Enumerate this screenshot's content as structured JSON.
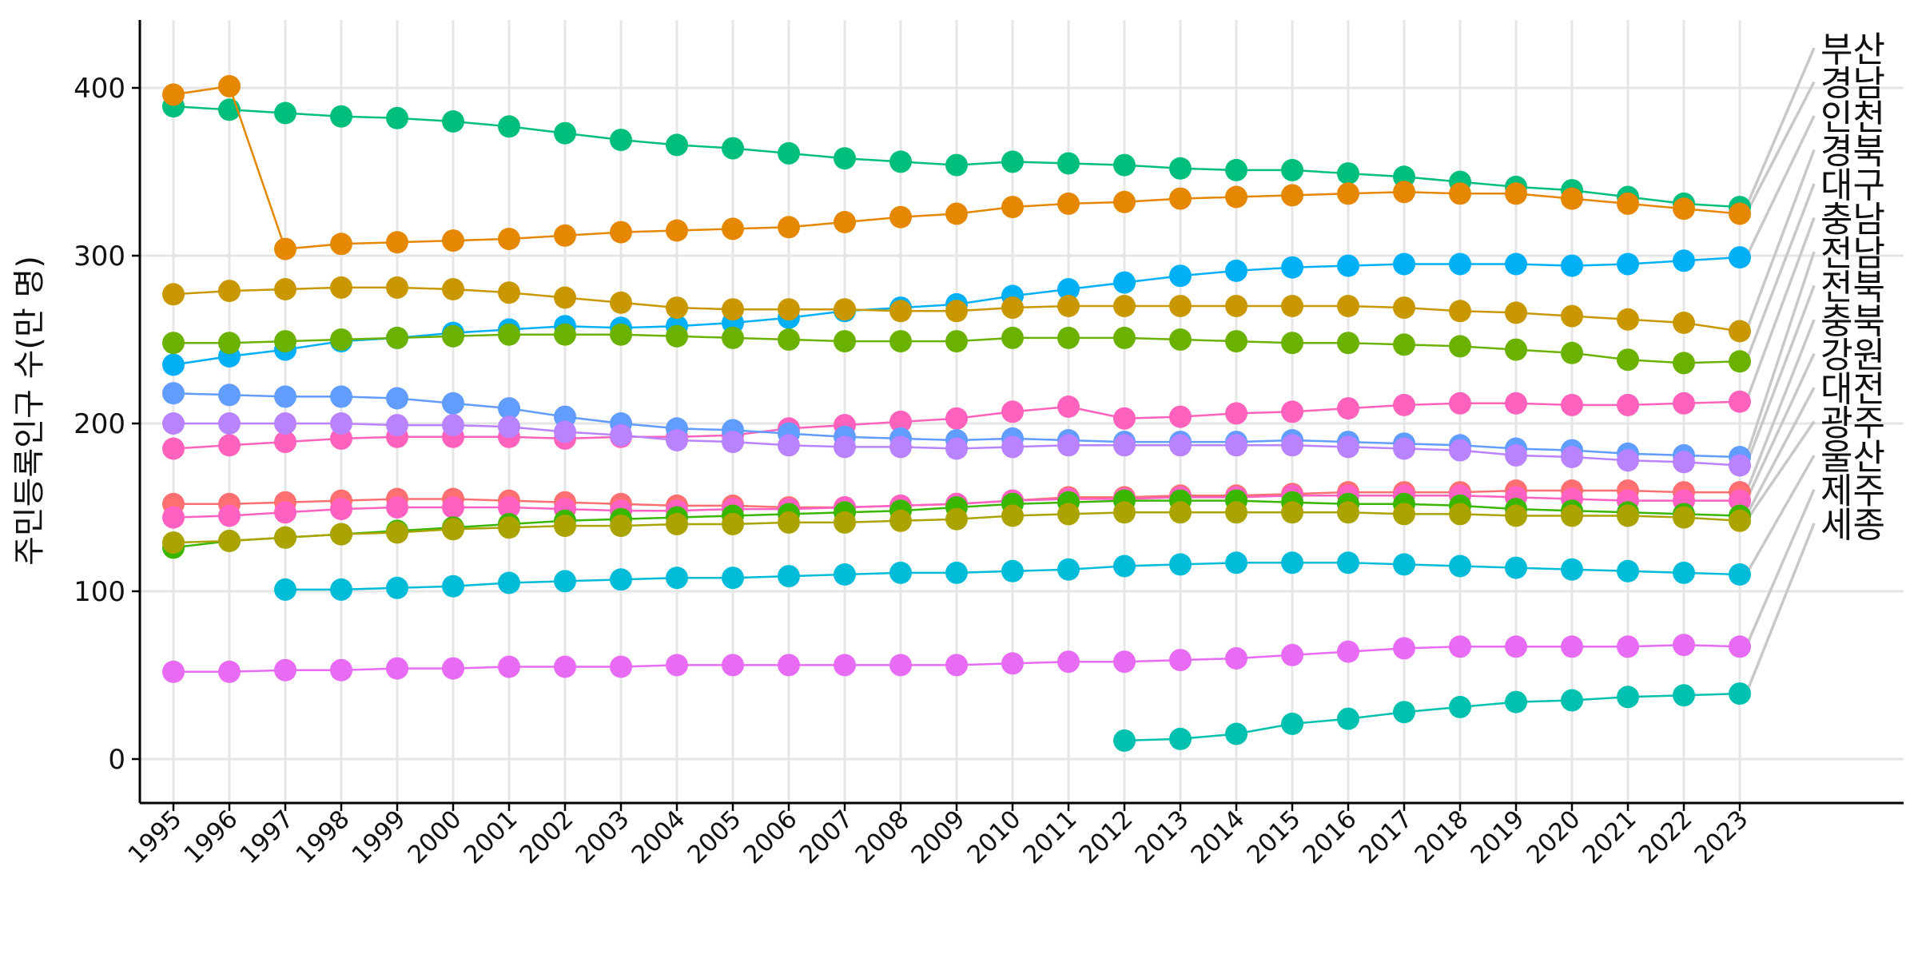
{
  "chart_data": {
    "type": "line",
    "title": "",
    "xlabel": "",
    "ylabel": "주민등록인구 수(만 명)",
    "x": [
      1995,
      1996,
      1997,
      1998,
      1999,
      2000,
      2001,
      2002,
      2003,
      2004,
      2005,
      2006,
      2007,
      2008,
      2009,
      2010,
      2011,
      2012,
      2013,
      2014,
      2015,
      2016,
      2017,
      2018,
      2019,
      2020,
      2021,
      2022,
      2023
    ],
    "ylim": [
      -27,
      440
    ],
    "y_ticks": [
      0,
      100,
      200,
      300,
      400
    ],
    "x_ticks": [
      "1995",
      "1996",
      "1997",
      "1998",
      "1999",
      "2000",
      "2001",
      "2002",
      "2003",
      "2004",
      "2005",
      "2006",
      "2007",
      "2008",
      "2009",
      "2010",
      "2011",
      "2012",
      "2013",
      "2014",
      "2015",
      "2016",
      "2017",
      "2018",
      "2019",
      "2020",
      "2021",
      "2022",
      "2023"
    ],
    "grid": true,
    "legend": "direct labels at right end of lines",
    "series": [
      {
        "name": "부산",
        "color": "#00BF7D",
        "values": [
          389,
          387,
          385,
          383,
          382,
          380,
          377,
          373,
          369,
          366,
          364,
          361,
          358,
          356,
          354,
          356,
          355,
          354,
          352,
          351,
          351,
          349,
          347,
          344,
          341,
          339,
          335,
          331,
          329
        ]
      },
      {
        "name": "경남",
        "color": "#E58700",
        "values": [
          396,
          401,
          304,
          307,
          308,
          309,
          310,
          312,
          314,
          315,
          316,
          317,
          320,
          323,
          325,
          329,
          331,
          332,
          334,
          335,
          336,
          337,
          338,
          337,
          337,
          334,
          331,
          328,
          325
        ]
      },
      {
        "name": "인천",
        "color": "#00B0F6",
        "values": [
          235,
          240,
          244,
          249,
          251,
          254,
          256,
          258,
          257,
          258,
          260,
          263,
          267,
          269,
          271,
          276,
          280,
          284,
          288,
          291,
          293,
          294,
          295,
          295,
          295,
          294,
          295,
          297,
          299
        ]
      },
      {
        "name": "경북",
        "color": "#C99800",
        "values": [
          277,
          279,
          280,
          281,
          281,
          280,
          278,
          275,
          272,
          269,
          268,
          268,
          268,
          267,
          267,
          269,
          270,
          270,
          270,
          270,
          270,
          270,
          269,
          267,
          266,
          264,
          262,
          260,
          255
        ]
      },
      {
        "name": "대구",
        "color": "#6BB100",
        "values": [
          248,
          248,
          249,
          250,
          251,
          252,
          253,
          253,
          253,
          252,
          251,
          250,
          249,
          249,
          249,
          251,
          251,
          251,
          250,
          249,
          248,
          248,
          247,
          246,
          244,
          242,
          238,
          236,
          237
        ]
      },
      {
        "name": "충남",
        "color": "#FF62BC",
        "values": [
          185,
          187,
          189,
          191,
          192,
          192,
          192,
          191,
          192,
          192,
          193,
          197,
          199,
          201,
          203,
          207,
          210,
          203,
          204,
          206,
          207,
          209,
          211,
          212,
          212,
          211,
          211,
          212,
          213
        ]
      },
      {
        "name": "전남",
        "color": "#619CFF",
        "values": [
          218,
          217,
          216,
          216,
          215,
          212,
          209,
          204,
          200,
          197,
          196,
          194,
          192,
          191,
          190,
          191,
          190,
          189,
          189,
          189,
          190,
          189,
          188,
          187,
          185,
          184,
          182,
          181,
          180
        ]
      },
      {
        "name": "전북",
        "color": "#B983FF",
        "values": [
          200,
          200,
          200,
          200,
          199,
          199,
          198,
          195,
          193,
          190,
          189,
          187,
          186,
          186,
          185,
          186,
          187,
          187,
          187,
          187,
          187,
          186,
          185,
          184,
          181,
          180,
          178,
          177,
          175
        ]
      },
      {
        "name": "충북",
        "color": "#FD6F71",
        "values": [
          152,
          152,
          153,
          154,
          155,
          155,
          154,
          153,
          152,
          151,
          151,
          150,
          150,
          151,
          152,
          154,
          156,
          156,
          157,
          157,
          158,
          159,
          159,
          159,
          160,
          160,
          160,
          159,
          159
        ]
      },
      {
        "name": "강원",
        "color": "#FF61C3",
        "values": [
          144,
          145,
          147,
          149,
          150,
          150,
          150,
          149,
          148,
          148,
          149,
          149,
          150,
          151,
          152,
          154,
          155,
          155,
          156,
          156,
          157,
          157,
          157,
          157,
          156,
          155,
          154,
          154,
          154
        ]
      },
      {
        "name": "대전",
        "color": "#39B600",
        "values": [
          126,
          130,
          132,
          134,
          136,
          138,
          140,
          142,
          143,
          144,
          145,
          146,
          147,
          148,
          150,
          152,
          153,
          154,
          154,
          154,
          153,
          152,
          152,
          151,
          149,
          148,
          147,
          146,
          145
        ]
      },
      {
        "name": "광주",
        "color": "#ABA300",
        "values": [
          129,
          130,
          132,
          134,
          135,
          137,
          138,
          139,
          139,
          140,
          140,
          141,
          141,
          142,
          143,
          145,
          146,
          147,
          147,
          147,
          147,
          147,
          146,
          146,
          145,
          145,
          145,
          144,
          142
        ]
      },
      {
        "name": "울산",
        "color": "#00BCD8",
        "values": [
          null,
          null,
          101,
          101,
          102,
          103,
          105,
          106,
          107,
          108,
          108,
          109,
          110,
          111,
          111,
          112,
          113,
          115,
          116,
          117,
          117,
          117,
          116,
          115,
          114,
          113,
          112,
          111,
          110
        ]
      },
      {
        "name": "제주",
        "color": "#E76BF3",
        "values": [
          52,
          52,
          53,
          53,
          54,
          54,
          55,
          55,
          55,
          56,
          56,
          56,
          56,
          56,
          56,
          57,
          58,
          58,
          59,
          60,
          62,
          64,
          66,
          67,
          67,
          67,
          67,
          68,
          67
        ]
      },
      {
        "name": "세종",
        "color": "#00C0AF",
        "values": [
          null,
          null,
          null,
          null,
          null,
          null,
          null,
          null,
          null,
          null,
          null,
          null,
          null,
          null,
          null,
          null,
          null,
          11,
          12,
          15,
          21,
          24,
          28,
          31,
          34,
          35,
          37,
          38,
          39
        ]
      }
    ],
    "end_labels": [
      "부산",
      "경남",
      "인천",
      "경북",
      "대구",
      "충남",
      "전남",
      "전북",
      "충북",
      "강원",
      "대전",
      "광주",
      "울산",
      "제주",
      "세종"
    ]
  }
}
